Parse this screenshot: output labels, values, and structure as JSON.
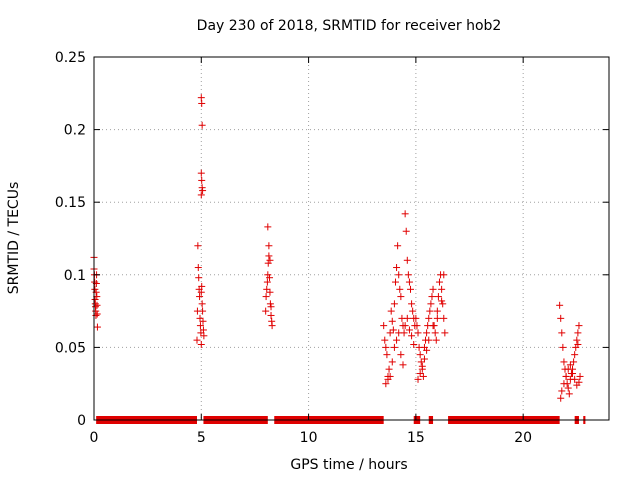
{
  "chart_data": {
    "type": "scatter",
    "title": "Day 230 of 2018, SRMTID for receiver hob2",
    "xlabel": "GPS time / hours",
    "ylabel": "SRMTID / TECUs",
    "xlim": [
      0,
      24
    ],
    "ylim": [
      0,
      0.25
    ],
    "xticks": [
      0,
      5,
      10,
      15,
      20
    ],
    "xtick_labels": [
      "0",
      "5",
      "10",
      "15",
      "20"
    ],
    "yticks": [
      0,
      0.05,
      0.1,
      0.15,
      0.2,
      0.25
    ],
    "ytick_labels": [
      "0",
      "0.05",
      "0.1",
      "0.15",
      "0.2",
      "0.25"
    ],
    "grid": true,
    "marker": "plus",
    "color": "#e00000",
    "zero_segments": [
      [
        0.1,
        4.8
      ],
      [
        5.1,
        8.1
      ],
      [
        8.4,
        13.5
      ],
      [
        14.9,
        15.2
      ],
      [
        15.6,
        15.8
      ],
      [
        16.5,
        21.7
      ],
      [
        22.4,
        22.6
      ],
      [
        22.8,
        22.9
      ]
    ],
    "series": [
      {
        "name": "SRMTID",
        "x": [
          0.0,
          0.0,
          0.02,
          0.03,
          0.04,
          0.05,
          0.06,
          0.07,
          0.08,
          0.09,
          0.1,
          0.11,
          0.12,
          0.13,
          0.14,
          0.15,
          0.16,
          4.8,
          4.82,
          4.84,
          4.86,
          4.88,
          4.9,
          4.92,
          4.94,
          4.96,
          4.98,
          5.0,
          5.0,
          5.02,
          5.04,
          5.06,
          5.08,
          5.1,
          5.12,
          5.0,
          5.0,
          5.02,
          5.04,
          5.06,
          5.0,
          5.02,
          5.04,
          8.0,
          8.02,
          8.05,
          8.08,
          8.1,
          8.12,
          8.15,
          8.18,
          8.2,
          8.22,
          8.25,
          8.28,
          8.3,
          8.1,
          8.15,
          8.2,
          8.25,
          13.5,
          13.55,
          13.6,
          13.65,
          13.7,
          13.75,
          13.8,
          13.85,
          13.9,
          13.95,
          14.0,
          14.05,
          14.1,
          14.15,
          14.2,
          14.25,
          14.3,
          14.35,
          14.4,
          14.45,
          14.5,
          14.55,
          14.6,
          14.65,
          14.7,
          14.75,
          14.8,
          14.85,
          14.9,
          14.95,
          13.6,
          13.7,
          13.8,
          13.9,
          14.0,
          14.1,
          14.2,
          14.3,
          14.4,
          14.5,
          14.6,
          14.7,
          14.8,
          14.9,
          15.0,
          15.05,
          15.1,
          15.15,
          15.2,
          15.25,
          15.3,
          15.35,
          15.4,
          15.45,
          15.5,
          15.55,
          15.6,
          15.65,
          15.7,
          15.75,
          15.8,
          15.85,
          15.9,
          15.95,
          16.0,
          16.05,
          16.1,
          16.15,
          16.2,
          16.25,
          16.3,
          16.35,
          15.1,
          15.2,
          15.3,
          15.4,
          15.5,
          15.6,
          15.8,
          16.0,
          16.2,
          16.3,
          21.7,
          21.75,
          21.8,
          21.85,
          21.9,
          21.95,
          22.0,
          22.05,
          22.1,
          22.15,
          22.2,
          22.25,
          22.3,
          22.35,
          22.4,
          22.45,
          22.5,
          22.55,
          22.6,
          22.65,
          21.8,
          21.9,
          22.0,
          22.1,
          22.2,
          22.3,
          22.4,
          22.5,
          22.6,
          21.75,
          22.55
        ],
        "y": [
          0.112,
          0.104,
          0.1,
          0.095,
          0.09,
          0.083,
          0.08,
          0.078,
          0.075,
          0.072,
          0.088,
          0.094,
          0.1,
          0.085,
          0.079,
          0.073,
          0.064,
          0.055,
          0.075,
          0.12,
          0.105,
          0.098,
          0.09,
          0.085,
          0.07,
          0.065,
          0.06,
          0.052,
          0.088,
          0.092,
          0.08,
          0.075,
          0.068,
          0.062,
          0.058,
          0.155,
          0.17,
          0.165,
          0.16,
          0.158,
          0.222,
          0.218,
          0.203,
          0.075,
          0.085,
          0.09,
          0.095,
          0.1,
          0.108,
          0.113,
          0.098,
          0.088,
          0.08,
          0.072,
          0.068,
          0.065,
          0.133,
          0.12,
          0.11,
          0.078,
          0.065,
          0.055,
          0.05,
          0.045,
          0.03,
          0.035,
          0.06,
          0.075,
          0.068,
          0.062,
          0.08,
          0.095,
          0.105,
          0.12,
          0.1,
          0.09,
          0.085,
          0.07,
          0.065,
          0.06,
          0.142,
          0.13,
          0.11,
          0.1,
          0.095,
          0.09,
          0.08,
          0.075,
          0.07,
          0.065,
          0.025,
          0.028,
          0.03,
          0.04,
          0.05,
          0.055,
          0.06,
          0.045,
          0.038,
          0.065,
          0.07,
          0.062,
          0.058,
          0.052,
          0.07,
          0.065,
          0.06,
          0.05,
          0.045,
          0.04,
          0.035,
          0.03,
          0.05,
          0.055,
          0.06,
          0.065,
          0.07,
          0.075,
          0.08,
          0.085,
          0.09,
          0.065,
          0.06,
          0.055,
          0.075,
          0.085,
          0.095,
          0.1,
          0.09,
          0.08,
          0.07,
          0.06,
          0.028,
          0.032,
          0.037,
          0.042,
          0.048,
          0.055,
          0.065,
          0.07,
          0.082,
          0.1,
          0.079,
          0.07,
          0.06,
          0.05,
          0.04,
          0.035,
          0.03,
          0.025,
          0.022,
          0.018,
          0.028,
          0.032,
          0.035,
          0.04,
          0.045,
          0.05,
          0.055,
          0.06,
          0.065,
          0.03,
          0.02,
          0.025,
          0.03,
          0.035,
          0.038,
          0.032,
          0.028,
          0.024,
          0.026,
          0.015,
          0.052
        ]
      }
    ]
  }
}
